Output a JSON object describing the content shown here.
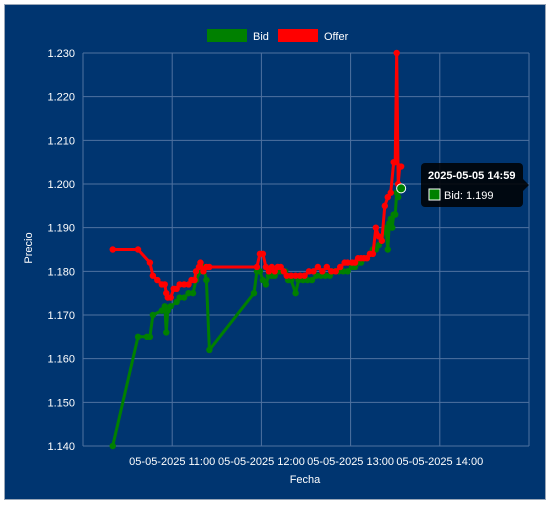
{
  "chart_data": {
    "type": "line",
    "title": "",
    "xlabel": "Fecha",
    "ylabel": "Precio",
    "x_ticks": [
      "05-05-2025 11:00",
      "05-05-2025 12:00",
      "05-05-2025 13:00",
      "05-05-2025 14:00"
    ],
    "y_ticks": [
      "1.140",
      "1.150",
      "1.160",
      "1.170",
      "1.180",
      "1.190",
      "1.200",
      "1.210",
      "1.220",
      "1.230"
    ],
    "ylim": [
      1.14,
      1.23
    ],
    "xlim": [
      "10:00",
      "15:00"
    ],
    "grid": true,
    "legend_position": "top-center",
    "series": [
      {
        "name": "Bid",
        "color": "#008000",
        "points": [
          [
            "10:20",
            1.14
          ],
          [
            "10:37",
            1.165
          ],
          [
            "10:43",
            1.165
          ],
          [
            "10:45",
            1.165
          ],
          [
            "10:47",
            1.17
          ],
          [
            "10:53",
            1.171
          ],
          [
            "10:55",
            1.172
          ],
          [
            "10:56",
            1.166
          ],
          [
            "10:57",
            1.171
          ],
          [
            "10:59",
            1.172
          ],
          [
            "11:03",
            1.173
          ],
          [
            "11:05",
            1.174
          ],
          [
            "11:08",
            1.174
          ],
          [
            "11:11",
            1.175
          ],
          [
            "11:14",
            1.175
          ],
          [
            "11:16",
            1.178
          ],
          [
            "11:19",
            1.18
          ],
          [
            "11:21",
            1.181
          ],
          [
            "11:23",
            1.178
          ],
          [
            "11:25",
            1.162
          ],
          [
            "11:55",
            1.175
          ],
          [
            "11:57",
            1.18
          ],
          [
            "11:59",
            1.18
          ],
          [
            "12:01",
            1.178
          ],
          [
            "12:03",
            1.177
          ],
          [
            "12:05",
            1.179
          ],
          [
            "12:07",
            1.179
          ],
          [
            "12:09",
            1.179
          ],
          [
            "12:11",
            1.18
          ],
          [
            "12:13",
            1.18
          ],
          [
            "12:16",
            1.18
          ],
          [
            "12:18",
            1.178
          ],
          [
            "12:20",
            1.178
          ],
          [
            "12:23",
            1.175
          ],
          [
            "12:25",
            1.178
          ],
          [
            "12:28",
            1.178
          ],
          [
            "12:31",
            1.178
          ],
          [
            "12:34",
            1.178
          ],
          [
            "12:37",
            1.179
          ],
          [
            "12:40",
            1.179
          ],
          [
            "12:43",
            1.179
          ],
          [
            "12:46",
            1.179
          ],
          [
            "12:49",
            1.18
          ],
          [
            "12:52",
            1.18
          ],
          [
            "12:55",
            1.18
          ],
          [
            "12:58",
            1.18
          ],
          [
            "13:01",
            1.181
          ],
          [
            "13:03",
            1.181
          ],
          [
            "13:05",
            1.182
          ],
          [
            "13:07",
            1.182
          ],
          [
            "13:09",
            1.183
          ],
          [
            "13:11",
            1.183
          ],
          [
            "13:13",
            1.184
          ],
          [
            "13:15",
            1.185
          ],
          [
            "13:17",
            1.185
          ],
          [
            "13:19",
            1.186
          ],
          [
            "13:21",
            1.187
          ],
          [
            "13:23",
            1.19
          ],
          [
            "13:24",
            1.189
          ],
          [
            "13:25",
            1.185
          ],
          [
            "13:26",
            1.191
          ],
          [
            "13:27",
            1.192
          ],
          [
            "13:28",
            1.19
          ],
          [
            "13:29",
            1.193
          ],
          [
            "13:30",
            1.193
          ],
          [
            "13:31",
            1.198
          ],
          [
            "13:32",
            1.197
          ],
          [
            "13:33",
            1.199
          ],
          [
            "13:34",
            1.199
          ]
        ]
      },
      {
        "name": "Offer",
        "color": "#ff0000",
        "points": [
          [
            "10:20",
            1.185
          ],
          [
            "10:37",
            1.185
          ],
          [
            "10:45",
            1.182
          ],
          [
            "10:47",
            1.179
          ],
          [
            "10:50",
            1.178
          ],
          [
            "10:53",
            1.177
          ],
          [
            "10:55",
            1.177
          ],
          [
            "10:56",
            1.175
          ],
          [
            "10:57",
            1.174
          ],
          [
            "10:59",
            1.174
          ],
          [
            "11:01",
            1.176
          ],
          [
            "11:03",
            1.176
          ],
          [
            "11:05",
            1.177
          ],
          [
            "11:08",
            1.177
          ],
          [
            "11:11",
            1.177
          ],
          [
            "11:13",
            1.178
          ],
          [
            "11:15",
            1.178
          ],
          [
            "11:16",
            1.18
          ],
          [
            "11:18",
            1.181
          ],
          [
            "11:19",
            1.182
          ],
          [
            "11:21",
            1.18
          ],
          [
            "11:23",
            1.181
          ],
          [
            "11:25",
            1.181
          ],
          [
            "11:57",
            1.181
          ],
          [
            "11:59",
            1.184
          ],
          [
            "12:01",
            1.184
          ],
          [
            "12:03",
            1.181
          ],
          [
            "12:05",
            1.18
          ],
          [
            "12:07",
            1.181
          ],
          [
            "12:09",
            1.18
          ],
          [
            "12:11",
            1.181
          ],
          [
            "12:13",
            1.181
          ],
          [
            "12:15",
            1.18
          ],
          [
            "12:17",
            1.179
          ],
          [
            "12:20",
            1.179
          ],
          [
            "12:23",
            1.179
          ],
          [
            "12:26",
            1.179
          ],
          [
            "12:29",
            1.179
          ],
          [
            "12:32",
            1.18
          ],
          [
            "12:35",
            1.18
          ],
          [
            "12:38",
            1.181
          ],
          [
            "12:41",
            1.18
          ],
          [
            "12:44",
            1.181
          ],
          [
            "12:47",
            1.18
          ],
          [
            "12:50",
            1.18
          ],
          [
            "12:53",
            1.181
          ],
          [
            "12:56",
            1.182
          ],
          [
            "12:58",
            1.182
          ],
          [
            "13:01",
            1.182
          ],
          [
            "13:03",
            1.182
          ],
          [
            "13:05",
            1.183
          ],
          [
            "13:07",
            1.183
          ],
          [
            "13:09",
            1.183
          ],
          [
            "13:11",
            1.183
          ],
          [
            "13:13",
            1.184
          ],
          [
            "13:15",
            1.184
          ],
          [
            "13:17",
            1.19
          ],
          [
            "13:19",
            1.188
          ],
          [
            "13:21",
            1.187
          ],
          [
            "13:23",
            1.195
          ],
          [
            "13:25",
            1.197
          ],
          [
            "13:27",
            1.198
          ],
          [
            "13:29",
            1.205
          ],
          [
            "13:30",
            1.205
          ],
          [
            "13:31",
            1.23
          ],
          [
            "13:32",
            1.2
          ],
          [
            "13:33",
            1.204
          ],
          [
            "13:34",
            1.204
          ]
        ]
      }
    ],
    "tooltip": {
      "title": "2025-05-05 14:59",
      "label": "Bid: 1.199",
      "series": "Bid"
    }
  }
}
